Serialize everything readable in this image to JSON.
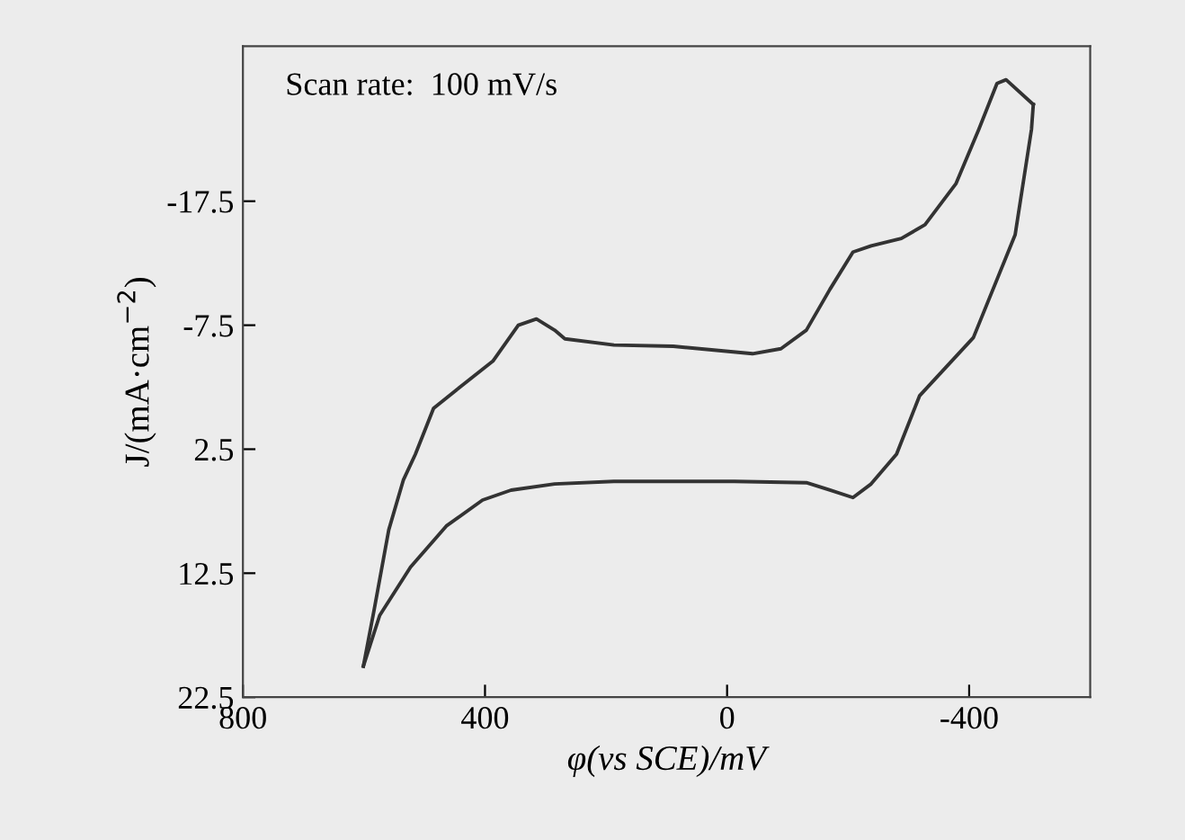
{
  "chart_data": {
    "type": "line",
    "xlabel": "φ(vs SCE)/mV",
    "ylabel": "J/(mA·cm$^{−2}$)",
    "annotations": [
      "Scan rate:  100 mV/s"
    ],
    "xlim": [
      800,
      -600
    ],
    "xticks": [
      800,
      400,
      0,
      -400
    ],
    "ylim": [
      22.5,
      -30
    ],
    "yticks": [
      -17.5,
      -7.5,
      2.5,
      12.5,
      22.5
    ],
    "grid": false,
    "series": [
      {
        "color": "#333333",
        "x": [
          601,
          583,
          559,
          535,
          515,
          485,
          434,
          387,
          345,
          315,
          285,
          268,
          187,
          89,
          -42,
          -89,
          -131,
          -170,
          -208,
          -238,
          -288,
          -327,
          -378,
          -416,
          -446,
          -461,
          -506
        ],
        "values": [
          20.0,
          15.4,
          9.0,
          5.0,
          2.9,
          -0.8,
          -2.8,
          -4.6,
          -7.5,
          -8.0,
          -7.1,
          -6.4,
          -5.9,
          -5.8,
          -5.2,
          -5.6,
          -7.1,
          -10.4,
          -13.4,
          -13.9,
          -14.5,
          -15.6,
          -18.9,
          -23.3,
          -27.0,
          -27.3,
          -25.3
        ]
      },
      {
        "color": "#333333",
        "x": [
          -506,
          -503,
          -476,
          -407,
          -318,
          -280,
          -238,
          -208,
          -170,
          -131,
          -12,
          187,
          285,
          357,
          404,
          464,
          523,
          574,
          601
        ],
        "values": [
          -25.3,
          -23.3,
          -14.8,
          -6.5,
          -1.8,
          2.9,
          5.3,
          6.4,
          5.8,
          5.2,
          5.1,
          5.1,
          5.3,
          5.8,
          6.6,
          8.7,
          12.0,
          15.9,
          20.0
        ]
      }
    ]
  }
}
